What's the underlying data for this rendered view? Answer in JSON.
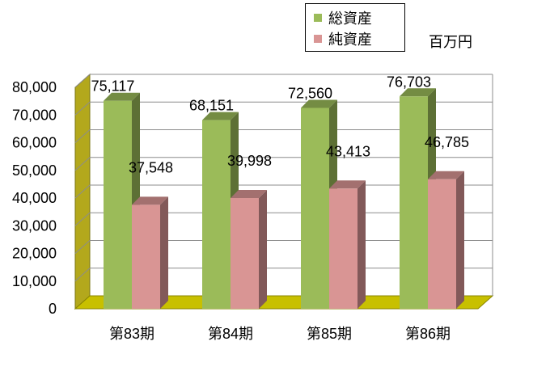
{
  "chart_data": {
    "type": "bar",
    "title": "",
    "unit": "百万円",
    "categories": [
      "第83期",
      "第84期",
      "第85期",
      "第86期"
    ],
    "series": [
      {
        "name": "総資産",
        "values": [
          75117,
          68151,
          72560,
          76703
        ],
        "labels": [
          "75,117",
          "68,151",
          "72,560",
          "76,703"
        ],
        "color": "#9bbb59"
      },
      {
        "name": "純資産",
        "values": [
          37548,
          39998,
          43413,
          46785
        ],
        "labels": [
          "37,548",
          "39,998",
          "43,413",
          "46,785"
        ],
        "color": "#d99594"
      }
    ],
    "yticks": [
      "0",
      "10,000",
      "20,000",
      "30,000",
      "40,000",
      "50,000",
      "60,000",
      "70,000",
      "80,000"
    ],
    "ylim": [
      0,
      80000
    ],
    "grid": true,
    "legend_position": "top-right",
    "colors": {
      "wall": "#b3a81c",
      "floor": "#c8c000"
    }
  }
}
